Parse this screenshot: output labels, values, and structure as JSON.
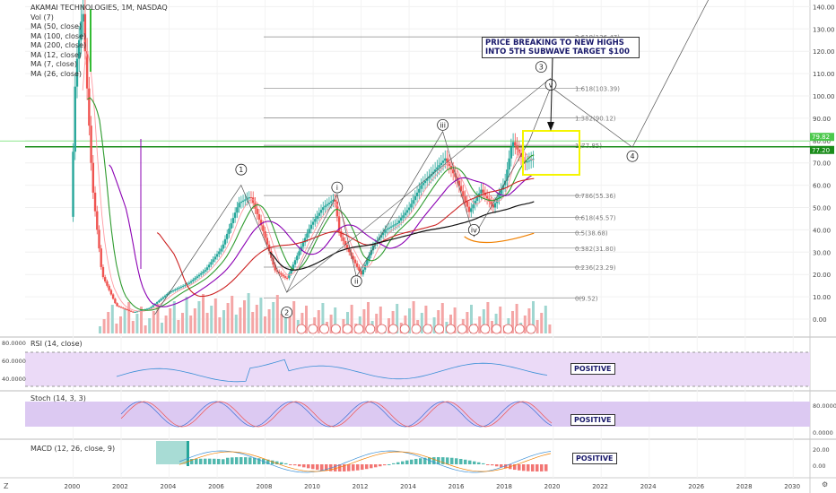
{
  "header": {
    "symbol_line": "AKAMAI TECHNOLOGIES, 1M, NASDAQ",
    "indicators": [
      "Vol (7)",
      "MA (50, close)",
      "MA (100, close)",
      "MA (200, close)",
      "MA (12, close)",
      "MA (7, close)",
      "MA (26, close)"
    ]
  },
  "annotation": "PRICE BREAKING TO NEW HIGHS INTO 5TH SUBWAVE TARGET $100",
  "panes": {
    "rsi": {
      "label": "RSI (14, close)",
      "tag": "POSITIVE"
    },
    "stoch": {
      "label": "Stoch (14, 3, 3)",
      "tag": "POSITIVE"
    },
    "macd": {
      "label": "MACD (12, 26, close, 9)",
      "tag": "POSITIVE"
    }
  },
  "corner": {
    "left": "Z",
    "right": "⚙"
  },
  "colors": {
    "price_line": "#00c800",
    "up": "#26a69a",
    "down": "#ef5350",
    "fib": "#888888",
    "highlight_box": "#f5f500",
    "rsi_band": "#e6d4f5",
    "macd_hist_up": "#26a69a"
  },
  "chart_data": {
    "type": "line",
    "x_ticks": [
      "2000",
      "2002",
      "2004",
      "2006",
      "2008",
      "2010",
      "2012",
      "2014",
      "2016",
      "2018",
      "2020",
      "2022",
      "2024",
      "2026",
      "2028",
      "2030"
    ],
    "y_ticks": [
      "140.00",
      "130.00",
      "120.00",
      "110.00",
      "100.00",
      "90.00",
      "80.00",
      "70.00",
      "60.00",
      "50.00",
      "40.00",
      "30.00",
      "20.00",
      "10.00",
      "0.00"
    ],
    "ylim": [
      0,
      140
    ],
    "current_price_labels": [
      "79.82",
      "77.20"
    ],
    "fib_levels": [
      {
        "ratio": "2.618",
        "label": "2.618(126.47)",
        "value": 126.47
      },
      {
        "ratio": "1.618",
        "label": "1.618(103.39)",
        "value": 103.39
      },
      {
        "ratio": "1.382",
        "label": "1.382(90.12)",
        "value": 90.12
      },
      {
        "ratio": "1",
        "label": "1(77.85)",
        "value": 77.85
      },
      {
        "ratio": "0.786",
        "label": "0.786(55.36)",
        "value": 55.36
      },
      {
        "ratio": "0.618",
        "label": "0.618(45.57)",
        "value": 45.57
      },
      {
        "ratio": "0.5",
        "label": "0.5(38.68)",
        "value": 38.68
      },
      {
        "ratio": "0.382",
        "label": "0.382(31.80)",
        "value": 31.8
      },
      {
        "ratio": "0.236",
        "label": "0.236(23.29)",
        "value": 23.29
      },
      {
        "ratio": "0",
        "label": "0(9.52)",
        "value": 9.52
      }
    ],
    "wave_labels": [
      "1",
      "2",
      "i",
      "ii",
      "iii",
      "iv",
      "v",
      "3",
      "4"
    ],
    "series": [
      {
        "name": "price",
        "x": [
          1999.9,
          2000.1,
          2000.4,
          2000.8,
          2001.2,
          2001.8,
          2002.5,
          2003.2,
          2004.0,
          2004.8,
          2005.5,
          2006.2,
          2006.9,
          2007.4,
          2007.9,
          2008.4,
          2008.9,
          2009.4,
          2009.9,
          2010.4,
          2010.9,
          2011.1,
          2011.6,
          2012.0,
          2012.5,
          2013.0,
          2013.5,
          2014.0,
          2014.5,
          2015.0,
          2015.5,
          2016.0,
          2016.5,
          2017.0,
          2017.5,
          2018.0,
          2018.3,
          2018.8,
          2019.2
        ],
        "values": [
          40,
          110,
          140,
          60,
          20,
          6,
          3,
          5,
          12,
          16,
          22,
          32,
          52,
          55,
          40,
          22,
          18,
          30,
          42,
          50,
          54,
          38,
          28,
          20,
          33,
          40,
          43,
          50,
          60,
          66,
          72,
          62,
          48,
          58,
          50,
          62,
          80,
          70,
          72
        ]
      }
    ]
  }
}
